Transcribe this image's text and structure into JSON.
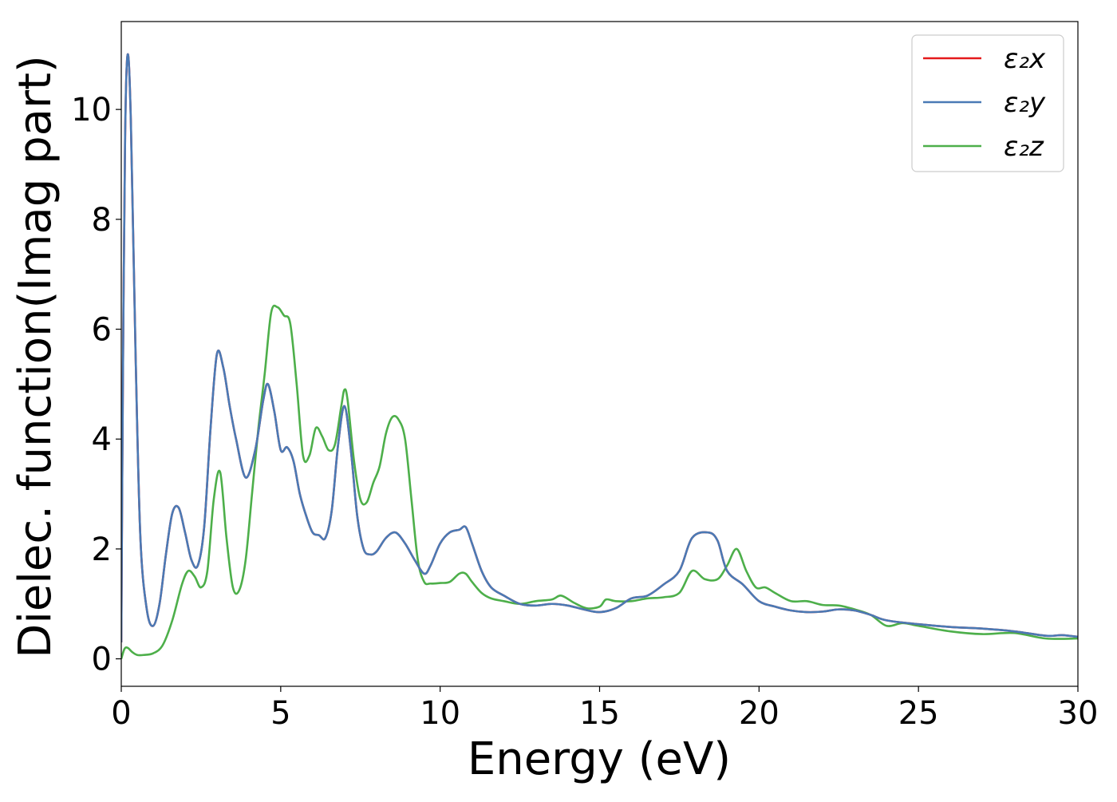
{
  "chart_data": {
    "type": "line",
    "xlabel": "Energy (eV)",
    "ylabel": "Dielec. function(Imag part)",
    "xlim": [
      0,
      30
    ],
    "ylim": [
      -0.5,
      11.6
    ],
    "xticks": [
      0,
      5,
      10,
      15,
      20,
      25,
      30
    ],
    "yticks": [
      0,
      2,
      4,
      6,
      8,
      10
    ],
    "grid": false,
    "legend_position": "top-right",
    "series": [
      {
        "name": "ε₂x",
        "color": "#e41a1c",
        "x": [
          0,
          0.05,
          0.12,
          0.2,
          0.3,
          0.45,
          0.6,
          0.8,
          1.0,
          1.2,
          1.4,
          1.6,
          1.8,
          2.0,
          2.2,
          2.4,
          2.6,
          2.8,
          3.0,
          3.2,
          3.4,
          3.6,
          3.9,
          4.2,
          4.45,
          4.6,
          4.8,
          5.0,
          5.2,
          5.4,
          5.6,
          5.8,
          6.0,
          6.2,
          6.4,
          6.6,
          6.8,
          7.0,
          7.2,
          7.4,
          7.6,
          7.8,
          8.0,
          8.3,
          8.6,
          8.9,
          9.2,
          9.5,
          9.7,
          10.0,
          10.3,
          10.6,
          10.8,
          11.0,
          11.3,
          11.6,
          12.0,
          12.5,
          13.0,
          13.5,
          14.0,
          14.5,
          15.0,
          15.5,
          16.0,
          16.5,
          17.0,
          17.5,
          17.9,
          18.4,
          18.7,
          19.0,
          19.5,
          20.0,
          20.5,
          21.0,
          21.5,
          22.0,
          22.5,
          23.0,
          23.5,
          24.0,
          25.0,
          26.0,
          27.0,
          28.0,
          29.0,
          29.5,
          30.0
        ],
        "y": [
          0.3,
          5.0,
          9.5,
          11.0,
          9.8,
          5.5,
          2.2,
          0.9,
          0.6,
          1.0,
          1.9,
          2.65,
          2.75,
          2.3,
          1.8,
          1.7,
          2.4,
          4.2,
          5.55,
          5.3,
          4.6,
          4.0,
          3.3,
          3.8,
          4.7,
          5.0,
          4.5,
          3.8,
          3.85,
          3.6,
          3.0,
          2.6,
          2.3,
          2.25,
          2.2,
          2.7,
          3.9,
          4.6,
          3.8,
          2.6,
          2.0,
          1.9,
          1.95,
          2.2,
          2.3,
          2.1,
          1.8,
          1.55,
          1.7,
          2.1,
          2.3,
          2.35,
          2.4,
          2.1,
          1.6,
          1.3,
          1.15,
          1.0,
          0.97,
          1.0,
          0.97,
          0.9,
          0.85,
          0.92,
          1.1,
          1.15,
          1.35,
          1.6,
          2.2,
          2.3,
          2.15,
          1.6,
          1.35,
          1.05,
          0.95,
          0.88,
          0.85,
          0.86,
          0.9,
          0.88,
          0.8,
          0.7,
          0.63,
          0.58,
          0.55,
          0.5,
          0.42,
          0.43,
          0.4
        ]
      },
      {
        "name": "ε₂y",
        "color": "#4a7ab5",
        "x": [
          0,
          0.05,
          0.12,
          0.2,
          0.3,
          0.45,
          0.6,
          0.8,
          1.0,
          1.2,
          1.4,
          1.6,
          1.8,
          2.0,
          2.2,
          2.4,
          2.6,
          2.8,
          3.0,
          3.2,
          3.4,
          3.6,
          3.9,
          4.2,
          4.45,
          4.6,
          4.8,
          5.0,
          5.2,
          5.4,
          5.6,
          5.8,
          6.0,
          6.2,
          6.4,
          6.6,
          6.8,
          7.0,
          7.2,
          7.4,
          7.6,
          7.8,
          8.0,
          8.3,
          8.6,
          8.9,
          9.2,
          9.5,
          9.7,
          10.0,
          10.3,
          10.6,
          10.8,
          11.0,
          11.3,
          11.6,
          12.0,
          12.5,
          13.0,
          13.5,
          14.0,
          14.5,
          15.0,
          15.5,
          16.0,
          16.5,
          17.0,
          17.5,
          17.9,
          18.4,
          18.7,
          19.0,
          19.5,
          20.0,
          20.5,
          21.0,
          21.5,
          22.0,
          22.5,
          23.0,
          23.5,
          24.0,
          25.0,
          26.0,
          27.0,
          28.0,
          29.0,
          29.5,
          30.0
        ],
        "y": [
          0.3,
          5.0,
          9.5,
          11.0,
          9.8,
          5.5,
          2.2,
          0.9,
          0.6,
          1.0,
          1.9,
          2.65,
          2.75,
          2.3,
          1.8,
          1.7,
          2.4,
          4.2,
          5.55,
          5.3,
          4.6,
          4.0,
          3.3,
          3.8,
          4.7,
          5.0,
          4.5,
          3.8,
          3.85,
          3.6,
          3.0,
          2.6,
          2.3,
          2.25,
          2.2,
          2.7,
          3.9,
          4.6,
          3.8,
          2.6,
          2.0,
          1.9,
          1.95,
          2.2,
          2.3,
          2.1,
          1.8,
          1.55,
          1.7,
          2.1,
          2.3,
          2.35,
          2.4,
          2.1,
          1.6,
          1.3,
          1.15,
          1.0,
          0.97,
          1.0,
          0.97,
          0.9,
          0.85,
          0.92,
          1.1,
          1.15,
          1.35,
          1.6,
          2.2,
          2.3,
          2.15,
          1.6,
          1.35,
          1.05,
          0.95,
          0.88,
          0.85,
          0.86,
          0.9,
          0.88,
          0.8,
          0.7,
          0.63,
          0.58,
          0.55,
          0.5,
          0.42,
          0.43,
          0.4
        ]
      },
      {
        "name": "ε₂z",
        "color": "#4daf4a",
        "x": [
          0,
          0.1,
          0.2,
          0.35,
          0.5,
          0.7,
          1.0,
          1.3,
          1.6,
          1.9,
          2.1,
          2.3,
          2.5,
          2.7,
          2.9,
          3.1,
          3.3,
          3.5,
          3.7,
          3.9,
          4.1,
          4.3,
          4.5,
          4.7,
          4.9,
          5.1,
          5.3,
          5.5,
          5.7,
          5.9,
          6.1,
          6.3,
          6.5,
          6.7,
          6.9,
          7.0,
          7.1,
          7.3,
          7.5,
          7.7,
          7.9,
          8.1,
          8.3,
          8.5,
          8.7,
          8.9,
          9.1,
          9.3,
          9.5,
          9.7,
          10.0,
          10.3,
          10.6,
          10.8,
          11.0,
          11.3,
          11.6,
          12.0,
          12.5,
          13.0,
          13.5,
          13.8,
          14.2,
          14.6,
          15.0,
          15.2,
          15.5,
          16.0,
          16.5,
          17.0,
          17.5,
          17.9,
          18.3,
          18.7,
          19.0,
          19.3,
          19.6,
          19.9,
          20.2,
          20.5,
          21.0,
          21.5,
          22.0,
          22.5,
          23.0,
          23.5,
          24.0,
          24.5,
          25.0,
          26.0,
          27.0,
          28.0,
          29.0,
          30.0
        ],
        "y": [
          0.0,
          0.18,
          0.2,
          0.12,
          0.07,
          0.07,
          0.1,
          0.25,
          0.7,
          1.35,
          1.6,
          1.5,
          1.3,
          1.6,
          2.9,
          3.4,
          2.2,
          1.3,
          1.25,
          1.8,
          3.0,
          4.2,
          5.2,
          6.3,
          6.4,
          6.25,
          6.1,
          5.0,
          3.7,
          3.7,
          4.2,
          4.05,
          3.8,
          3.9,
          4.6,
          4.9,
          4.7,
          3.6,
          2.9,
          2.85,
          3.2,
          3.5,
          4.1,
          4.4,
          4.35,
          4.0,
          2.9,
          1.8,
          1.4,
          1.37,
          1.38,
          1.4,
          1.55,
          1.55,
          1.4,
          1.2,
          1.1,
          1.05,
          1.0,
          1.05,
          1.08,
          1.15,
          1.02,
          0.92,
          0.95,
          1.08,
          1.05,
          1.05,
          1.1,
          1.12,
          1.2,
          1.6,
          1.45,
          1.45,
          1.7,
          2.0,
          1.6,
          1.3,
          1.3,
          1.2,
          1.05,
          1.05,
          0.98,
          0.97,
          0.9,
          0.8,
          0.6,
          0.65,
          0.6,
          0.5,
          0.45,
          0.47,
          0.37,
          0.37
        ]
      }
    ]
  }
}
